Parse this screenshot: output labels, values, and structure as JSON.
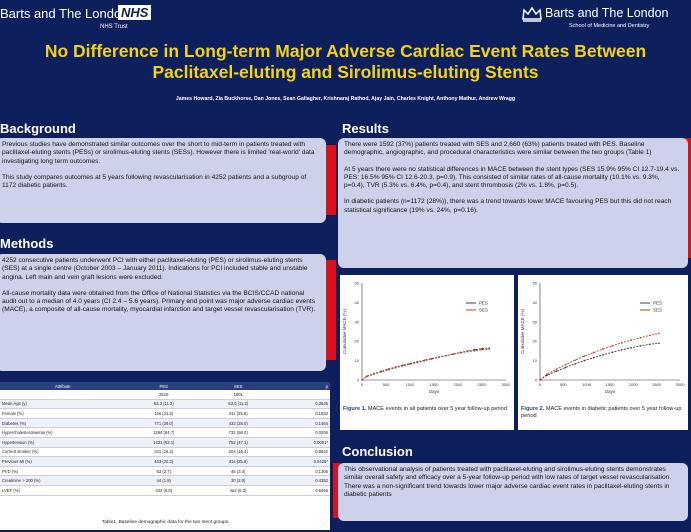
{
  "header": {
    "left_org": "Barts and The London",
    "nhs_logo": "NHS",
    "nhs_trust": "NHS Trust",
    "right_org": "Barts and The London",
    "right_school": "School of Medicine and Dentistry"
  },
  "title": {
    "line1": "No Difference in Long-term Major Adverse Cardiac Event Rates Between",
    "line2": "Paclitaxel-eluting and  Sirolimus-eluting Stents"
  },
  "authors": "James Howard, Zia Buckhorse, Dan Jones, Sean Gallagher,  Krishnaraj Rathod, Ajay Jain, Charles Knight, Anthony  Mathur, Andrew Wragg",
  "background": {
    "heading": "Background",
    "p1": "Previous studies have demonstrated similar outcomes over the short to mid-term in patients treated with paclitaxel-eluting stents (PESs) or sirolimus-eluting stents (SESs). However there is limited 'real-world' data investigating long term outcomes.",
    "p2": "This study compares outcomes at 5 years following revascularisation in 4252 patients and a subgroup of 1172 diabetic patients."
  },
  "methods": {
    "heading": "Methods",
    "p1": "4252 consecutive patients underwent PCI with either paclitaxel-eluting (PES) or sirolimus-eluting stents (SES) at a single centre (October 2003 – January 2011). Indications for PCI included stable and unstable angina. Left main and vein graft lesions were excluded.",
    "p2": "All-cause mortality data were obtained from the Office of National Statistics via the BCIS/CCAD national audit out to a median of 4.0 years (CI 2.4 – 5.6 years). Primary end point was major adverse cardiac events (MACE), a composite of all-cause mortality, myocardial infarction and target vessel  revascularisation (TVR)."
  },
  "table": {
    "headers": [
      "Attribute",
      "PES",
      "SES",
      "p"
    ],
    "rows": [
      [
        "",
        "2519",
        "1001",
        ""
      ],
      [
        "Mean Age (y)",
        "63.3 (11.2)",
        "63.0 (11.2)",
        "0.3545"
      ],
      [
        "Female (%)",
        "10s (21.5)",
        "411 (25.6)",
        "0.1553"
      ],
      [
        "Diabetes (%)",
        "771 (29.0)",
        "432 (28.0)",
        "0.1464"
      ],
      [
        "Hypercholesterolaemia (%)",
        "1264 (64.7)",
        "732 (58.0)",
        "0.0206"
      ],
      [
        "Hypertension (%)",
        "1431 (63.1)",
        "752 (47.1)",
        "0.0001*"
      ],
      [
        "Current smoker (%)",
        "341 (16.2)",
        "204 (16.4)",
        "0.8542"
      ],
      [
        "Previous MI (%)",
        "443 (20.2)",
        "41s (25.6)",
        "0.0425*"
      ],
      [
        "PVD (%)",
        "63 (2.7)",
        "46 (3.4)",
        "0.1305"
      ],
      [
        "Creatinine > 200 (%)",
        "44 (1.8)",
        "30 (2.0)",
        "0.4352"
      ],
      [
        "LVEF (%)",
        "443 (6.8)",
        "sa2 (6.3)",
        "0.6465"
      ]
    ],
    "caption": "Table1. Baseline demographic data for the two stent groups"
  },
  "results": {
    "heading": "Results",
    "p1": "There were 1592 (37%) patients treated with SES and 2,660 (63%) patients treated with PES. Baseline demographic, angiographic, and procedural characteristics were similar between the two groups (Table 1)",
    "p2": "At 5 years there were no statistical differences in MACE between the stent types (SES 15.9% 95% CI 12.7-19.4 vs. PES: 16.5% 95% CI 12.6-20.3, p=0.9). This consisted of similar rates of all-cause mortality (10.1% vs. 9.3%, p=0.4), TVR (5.3% vs. 6.4%, p=0.4), and stent thrombosis (2% vs. 1.8%, p=0.5).",
    "p3": "In diabetic patients (n=1172 (28%)), there was a trend towards lower MACE favouring PES but this did not reach statistical significance (19% vs. 24%, p=0.16)."
  },
  "figures": {
    "fig1_label": "Figure 1.",
    "fig1_text": " MACE events in all patients over 5 year follow-up period",
    "fig2_label": "Figure 2.",
    "fig2_text": " MACE events in diabetic patients over 5 year follow-up period"
  },
  "conclusion": {
    "heading": "Conclusion",
    "p1": "This observational analysis of patients treated with paclitaxel-eluting and sirolimus-eluting stents demonstrates similar overall safety and efficacy over a 5-year follow-up period with low rates of target vessel revascularisation. There was a non-significant trend towards lower major adverse cardiac event rates in paclitaxel-eluting stents in diabetic patients"
  },
  "chart_data": [
    {
      "type": "line",
      "title": "",
      "xlabel": "Days",
      "ylabel": "Cumulative MACE (%)",
      "x_ticks": [
        "0",
        "500",
        "1000",
        "1500",
        "2000",
        "2500",
        "3000"
      ],
      "y_ticks": [
        "0",
        "10",
        "20",
        "30",
        "40",
        "50"
      ],
      "xlim": [
        0,
        3000
      ],
      "ylim": [
        0,
        50
      ],
      "legend": [
        "PES",
        "SES"
      ],
      "series": [
        {
          "name": "PES",
          "color": "#3c3c3c",
          "x": [
            0,
            100,
            250,
            400,
            550,
            700,
            850,
            1000,
            1150,
            1300,
            1450,
            1600,
            1750,
            1900,
            2050,
            2200,
            2350,
            2500,
            2650
          ],
          "y": [
            0,
            2,
            3.2,
            4.5,
            5.6,
            6.7,
            7.6,
            8.5,
            9.4,
            10.2,
            11,
            11.8,
            12.6,
            13.4,
            14.2,
            15,
            15.6,
            16.2,
            16.5
          ]
        },
        {
          "name": "SES",
          "color": "#c0392b",
          "x": [
            0,
            100,
            250,
            400,
            550,
            700,
            850,
            1000,
            1150,
            1300,
            1450,
            1600,
            1750,
            1900,
            2050,
            2200,
            2350,
            2500,
            2650
          ],
          "y": [
            0,
            1.8,
            3,
            4.2,
            5.3,
            6.3,
            7.3,
            8.2,
            9,
            9.9,
            10.8,
            11.7,
            12.5,
            13.3,
            14,
            14.6,
            15.1,
            15.6,
            15.9
          ]
        }
      ]
    },
    {
      "type": "line",
      "title": "",
      "xlabel": "Days",
      "ylabel": "Cumulative MACE (%)",
      "x_ticks": [
        "0",
        "500",
        "1000",
        "1500",
        "2000",
        "2500",
        "3000"
      ],
      "y_ticks": [
        "0",
        "10",
        "20",
        "30",
        "40",
        "50"
      ],
      "xlim": [
        0,
        3000
      ],
      "ylim": [
        0,
        50
      ],
      "legend": [
        "PES",
        "SES"
      ],
      "series": [
        {
          "name": "PES",
          "color": "#3c3c3c",
          "x": [
            0,
            150,
            350,
            550,
            750,
            950,
            1150,
            1350,
            1550,
            1750,
            1950,
            2150,
            2350,
            2550
          ],
          "y": [
            0,
            2.5,
            4.5,
            6.5,
            8.3,
            10,
            11.5,
            13,
            14.3,
            15.5,
            16.6,
            17.6,
            18.4,
            19
          ]
        },
        {
          "name": "SES",
          "color": "#c0392b",
          "x": [
            0,
            150,
            350,
            550,
            750,
            950,
            1150,
            1350,
            1550,
            1750,
            1950,
            2150,
            2350,
            2550
          ],
          "y": [
            0,
            3,
            5.5,
            8,
            10.2,
            12.3,
            14.2,
            16,
            17.6,
            19.1,
            20.5,
            21.8,
            23,
            24
          ]
        }
      ]
    }
  ]
}
